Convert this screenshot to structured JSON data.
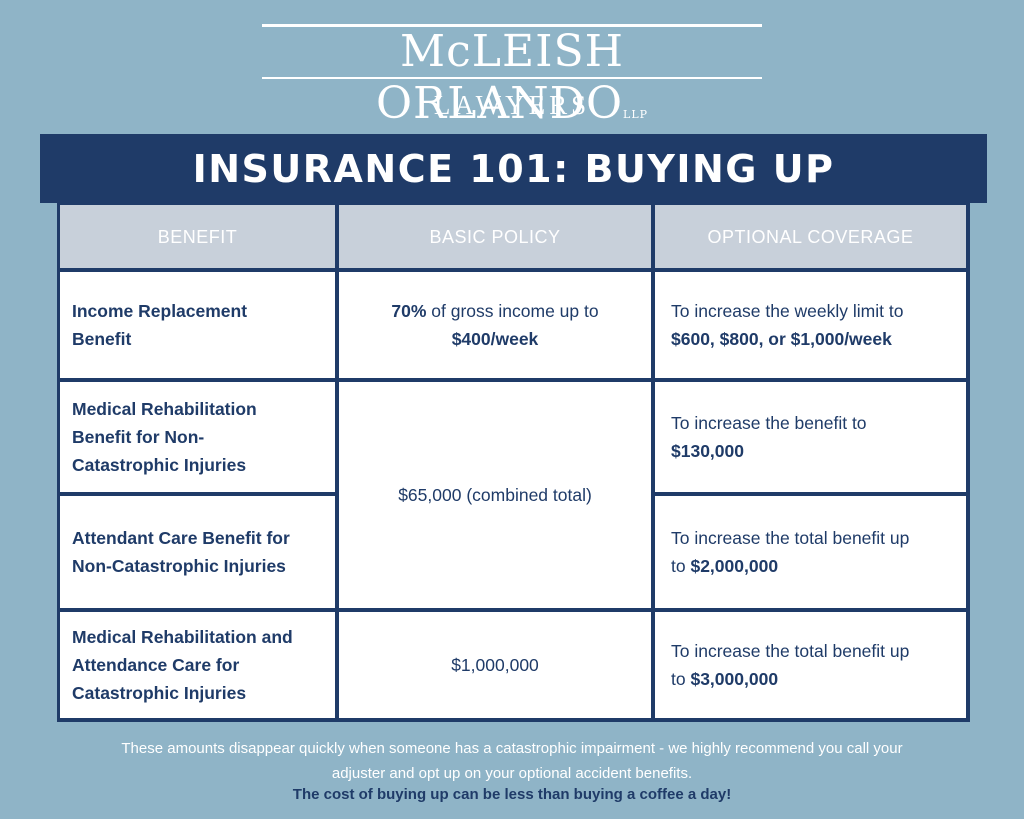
{
  "logo": {
    "firm_name": "McLEISH ORLANDO",
    "suffix": "LLP",
    "subtitle": "LAWYERS"
  },
  "title": "INSURANCE 101: BUYING UP",
  "table": {
    "headers": [
      "BENEFIT",
      "BASIC POLICY",
      "OPTIONAL COVERAGE"
    ],
    "rows": [
      {
        "benefit": [
          "Income Replacement",
          "Benefit"
        ],
        "basic": {
          "bold_pct": "70%",
          "text": " of gross income up to",
          "bold_amount": "$400/week"
        },
        "optional": {
          "line1": "To increase the weekly limit to",
          "bold": "$600, $800, or $1,000/week"
        }
      },
      {
        "benefit": [
          "Medical Rehabilitation",
          "Benefit for Non-",
          "Catastrophic Injuries"
        ],
        "optional": {
          "line1": "To increase the benefit to",
          "bold": "$130,000"
        }
      },
      {
        "benefit": [
          "Attendant Care Benefit for",
          "Non-Catastrophic Injuries"
        ],
        "optional": {
          "line1": "To increase the total benefit up",
          "prefix": "to ",
          "bold": "$2,000,000"
        }
      },
      {
        "benefit": [
          "Medical Rehabilitation and",
          "Attendance Care for",
          "Catastrophic Injuries"
        ],
        "basic": {
          "text": "$1,000,000"
        },
        "optional": {
          "line1": "To increase the total benefit up",
          "prefix": "to ",
          "bold": "$3,000,000"
        }
      }
    ],
    "combined_basic": "$65,000 (combined total)"
  },
  "footer": {
    "line1": "These amounts disappear quickly  when someone has a catastrophic impairment - we highly recommend you call your",
    "line2": "adjuster and opt up on your optional accident benefits.",
    "tagline": "The cost of buying up can be less than buying a coffee a day!"
  },
  "colors": {
    "background": "#8fb4c7",
    "navy": "#1f3b68",
    "header_cell": "#c8d0da",
    "white": "#ffffff"
  }
}
